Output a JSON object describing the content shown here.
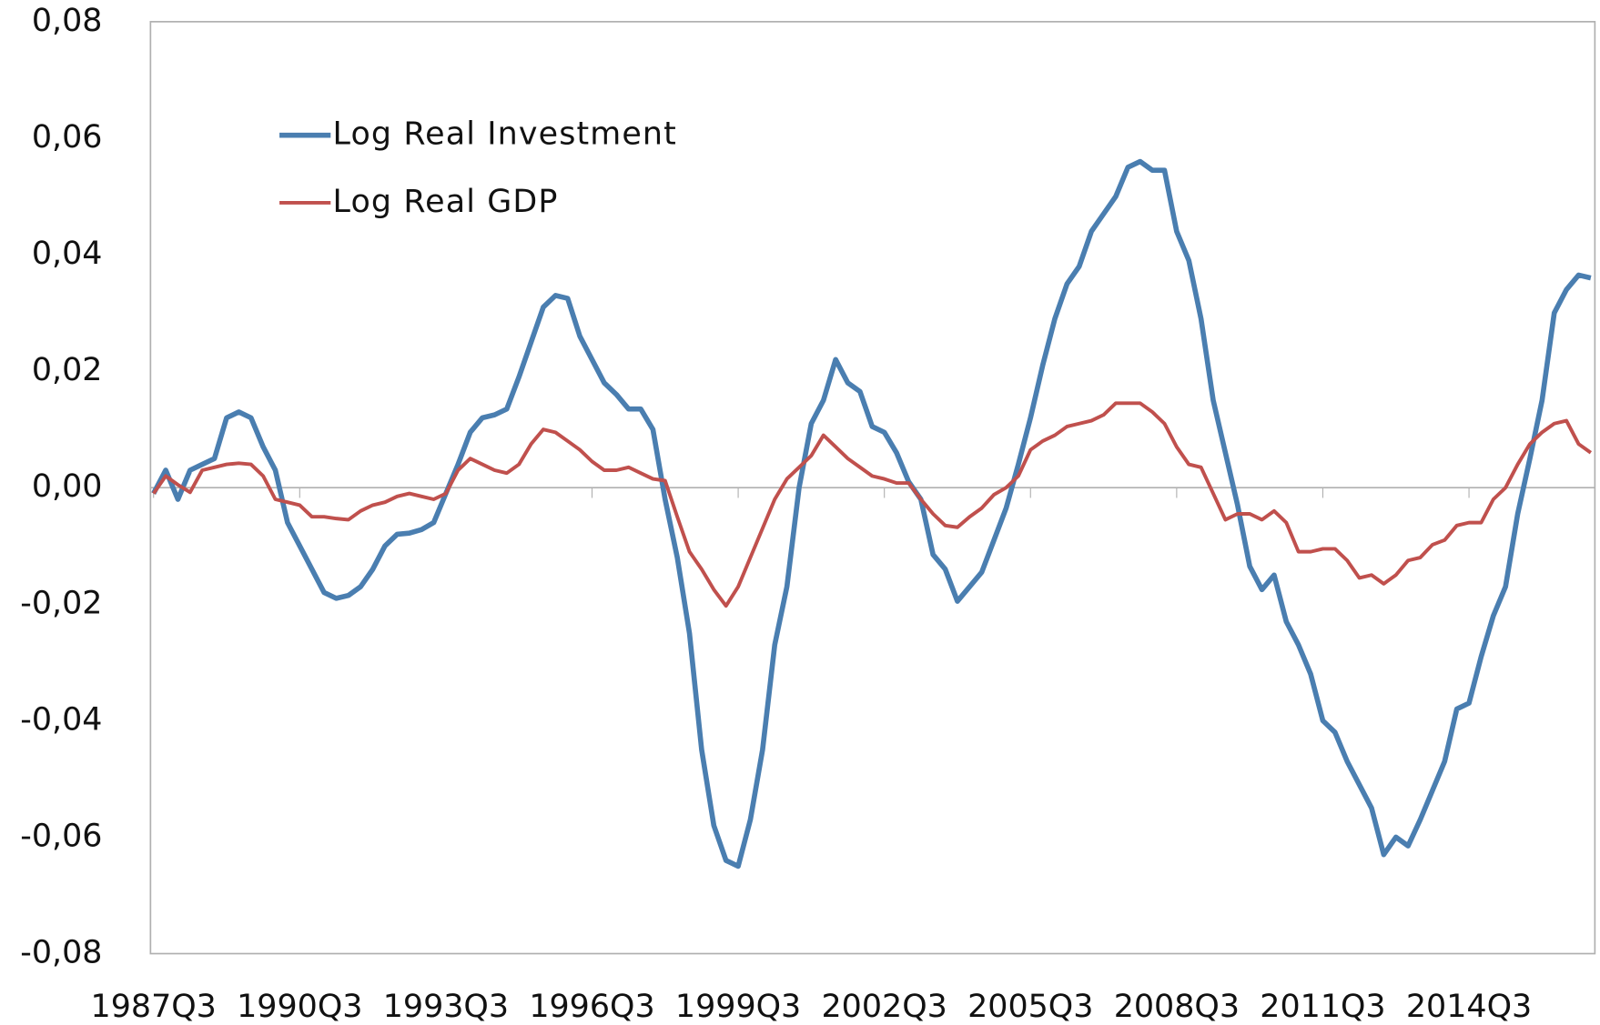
{
  "chart_data": {
    "type": "line",
    "categories": [
      "1987Q3",
      null,
      null,
      null,
      null,
      null,
      null,
      null,
      null,
      null,
      null,
      null,
      "1990Q3",
      null,
      null,
      null,
      null,
      null,
      null,
      null,
      null,
      null,
      null,
      null,
      "1993Q3",
      null,
      null,
      null,
      null,
      null,
      null,
      null,
      null,
      null,
      null,
      null,
      "1996Q3",
      null,
      null,
      null,
      null,
      null,
      null,
      null,
      null,
      null,
      null,
      null,
      "1999Q3",
      null,
      null,
      null,
      null,
      null,
      null,
      null,
      null,
      null,
      null,
      null,
      "2002Q3",
      null,
      null,
      null,
      null,
      null,
      null,
      null,
      null,
      null,
      null,
      null,
      "2005Q3",
      null,
      null,
      null,
      null,
      null,
      null,
      null,
      null,
      null,
      null,
      null,
      "2008Q3",
      null,
      null,
      null,
      null,
      null,
      null,
      null,
      null,
      null,
      null,
      null,
      "2011Q3",
      null,
      null,
      null,
      null,
      null,
      null,
      null,
      null,
      null,
      null,
      null,
      "2014Q3",
      null,
      null,
      null,
      null,
      null,
      null,
      null,
      null,
      null,
      null
    ],
    "series": [
      {
        "name": "Log Real Investment",
        "color": "#4a7eb0",
        "values": [
          -0.001,
          0.003,
          -0.002,
          0.003,
          0.004,
          0.005,
          0.012,
          0.013,
          0.012,
          0.007,
          0.003,
          -0.006,
          -0.01,
          -0.014,
          -0.018,
          -0.019,
          -0.0185,
          -0.017,
          -0.014,
          -0.01,
          -0.008,
          -0.0078,
          -0.0072,
          -0.006,
          -0.001,
          0.004,
          0.0095,
          0.012,
          0.0125,
          0.0135,
          0.019,
          0.025,
          0.031,
          0.033,
          0.0325,
          0.026,
          0.022,
          0.018,
          0.016,
          0.0135,
          0.0135,
          0.01,
          -0.002,
          -0.012,
          -0.025,
          -0.045,
          -0.058,
          -0.064,
          -0.065,
          -0.057,
          -0.045,
          -0.027,
          -0.017,
          0.0,
          0.011,
          0.015,
          0.022,
          0.018,
          0.0165,
          0.0105,
          0.0095,
          0.006,
          0.001,
          -0.002,
          -0.0115,
          -0.014,
          -0.0195,
          -0.017,
          -0.0145,
          -0.009,
          -0.0035,
          0.004,
          0.012,
          0.021,
          0.029,
          0.035,
          0.038,
          0.044,
          0.047,
          0.05,
          0.055,
          0.056,
          0.0545,
          0.0545,
          0.044,
          0.039,
          0.029,
          0.015,
          0.006,
          -0.003,
          -0.0135,
          -0.0175,
          -0.015,
          -0.023,
          -0.027,
          -0.032,
          -0.04,
          -0.042,
          -0.047,
          -0.051,
          -0.055,
          -0.063,
          -0.06,
          -0.0615,
          -0.057,
          -0.052,
          -0.047,
          -0.038,
          -0.037,
          -0.029,
          -0.022,
          -0.017,
          -0.0045,
          0.005,
          0.015,
          0.03,
          0.034,
          0.0365,
          0.036
        ]
      },
      {
        "name": "Log Real GDP",
        "color": "#c0504d",
        "values": [
          -0.001,
          0.002,
          0.0005,
          -0.0008,
          0.003,
          0.0035,
          0.004,
          0.0042,
          0.004,
          0.002,
          -0.002,
          -0.0025,
          -0.003,
          -0.005,
          -0.005,
          -0.0053,
          -0.0055,
          -0.004,
          -0.003,
          -0.0025,
          -0.0015,
          -0.001,
          -0.0015,
          -0.002,
          -0.001,
          0.003,
          0.005,
          0.004,
          0.003,
          0.0025,
          0.004,
          0.0075,
          0.01,
          0.0095,
          0.008,
          0.0065,
          0.0045,
          0.003,
          0.003,
          0.0035,
          0.0025,
          0.0015,
          0.0012,
          -0.005,
          -0.011,
          -0.014,
          -0.0175,
          -0.0203,
          -0.017,
          -0.012,
          -0.007,
          -0.002,
          0.0015,
          0.0035,
          0.0055,
          0.009,
          0.007,
          0.005,
          0.0035,
          0.002,
          0.0015,
          0.0008,
          0.0008,
          -0.002,
          -0.0045,
          -0.0065,
          -0.0068,
          -0.005,
          -0.0035,
          -0.0012,
          0.0,
          0.002,
          0.0065,
          0.008,
          0.009,
          0.0105,
          0.011,
          0.0115,
          0.0125,
          0.0145,
          0.0145,
          0.0145,
          0.013,
          0.011,
          0.007,
          0.004,
          0.0035,
          -0.001,
          -0.0055,
          -0.0045,
          -0.0045,
          -0.0055,
          -0.004,
          -0.006,
          -0.011,
          -0.011,
          -0.0105,
          -0.0105,
          -0.0125,
          -0.0155,
          -0.015,
          -0.0165,
          -0.015,
          -0.0125,
          -0.012,
          -0.0098,
          -0.009,
          -0.0065,
          -0.006,
          -0.006,
          -0.002,
          0.0,
          0.004,
          0.0075,
          0.0095,
          0.011,
          0.0115,
          0.0075,
          0.006
        ]
      }
    ],
    "ylim": [
      -0.08,
      0.08
    ],
    "yticks": [
      {
        "value": -0.08,
        "label": "-0,08"
      },
      {
        "value": -0.06,
        "label": "-0,06"
      },
      {
        "value": -0.04,
        "label": "-0,04"
      },
      {
        "value": -0.02,
        "label": "-0,02"
      },
      {
        "value": 0,
        "label": "0,00"
      },
      {
        "value": 0.02,
        "label": "0,02"
      },
      {
        "value": 0.04,
        "label": "0,04"
      },
      {
        "value": 0.06,
        "label": "0,06"
      },
      {
        "value": 0.08,
        "label": "0,08"
      }
    ],
    "grid": false,
    "legend": "upper-left"
  }
}
